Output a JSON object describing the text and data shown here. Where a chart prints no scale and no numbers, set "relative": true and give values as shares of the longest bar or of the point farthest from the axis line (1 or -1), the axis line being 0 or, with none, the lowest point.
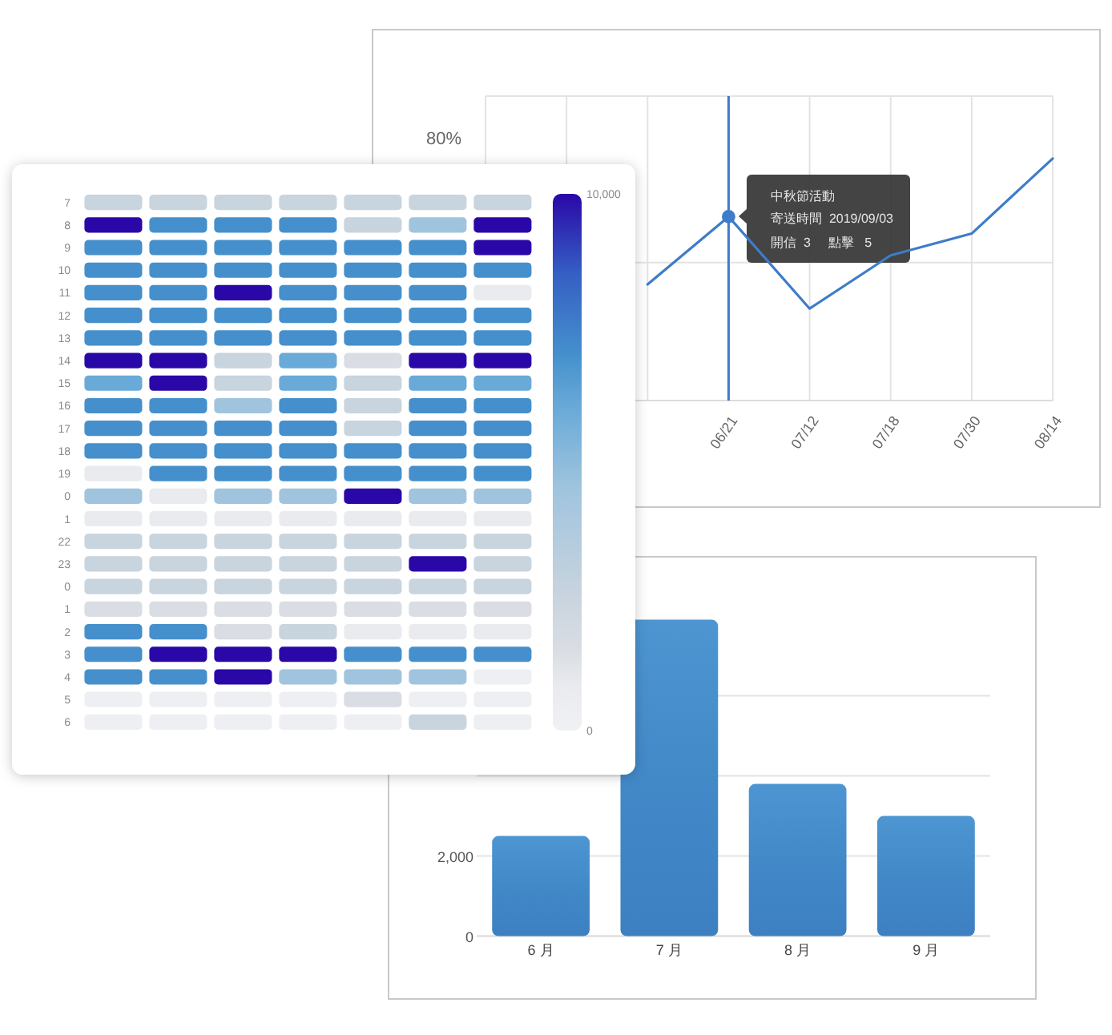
{
  "chart_data": [
    {
      "type": "line",
      "categories": [
        null,
        null,
        null,
        "06/21",
        "07/12",
        "07/18",
        "07/30",
        "08/14"
      ],
      "relative": true,
      "grid": true,
      "series": [
        {
          "color": "#3d7cc9",
          "values": [
            null,
            null,
            0.48,
            0.76,
            0.38,
            0.6,
            0.69,
            1
          ]
        },
        {
          "type": "scatter",
          "color": "#3d7cc9",
          "values": [
            null,
            null,
            null,
            0.76,
            null,
            null,
            null,
            null
          ]
        }
      ],
      "ref_lines": [
        {
          "axis": "x",
          "value": "06/21",
          "color": "#3d7cc9"
        }
      ],
      "annotations": [
        "80%",
        "中秋節活動",
        "寄送時間  2019/09/03",
        "開信  3     點擊   5"
      ]
    },
    {
      "type": "heatmap",
      "categories": [
        null,
        null,
        null,
        null,
        null,
        null,
        null
      ],
      "y_categories": [
        "7",
        "8",
        "9",
        "10",
        "11",
        "12",
        "13",
        "14",
        "15",
        "16",
        "17",
        "18",
        "19",
        "0",
        "1",
        "22",
        "23",
        "0",
        "1",
        "2",
        "3",
        "4",
        "5",
        "6"
      ],
      "cells": [
        [
          2500,
          2500,
          2500,
          2500,
          2500,
          2500,
          2500
        ],
        [
          10000,
          7000,
          7000,
          7000,
          2500,
          4500,
          10000
        ],
        [
          7000,
          7000,
          7000,
          7000,
          7000,
          7000,
          10000
        ],
        [
          7000,
          7000,
          7000,
          7000,
          7000,
          7000,
          7000
        ],
        [
          7000,
          7000,
          10000,
          7000,
          7000,
          7000,
          800
        ],
        [
          7000,
          7000,
          7000,
          7000,
          7000,
          7000,
          7000
        ],
        [
          7000,
          7000,
          7000,
          7000,
          7000,
          7000,
          7000
        ],
        [
          10000,
          10000,
          2500,
          6000,
          1500,
          10000,
          10000
        ],
        [
          6000,
          10000,
          2500,
          6000,
          2500,
          6000,
          6000
        ],
        [
          7000,
          7000,
          4500,
          7000,
          2500,
          7000,
          7000
        ],
        [
          7000,
          7000,
          7000,
          7000,
          2500,
          7000,
          7000
        ],
        [
          7000,
          7000,
          7000,
          7000,
          7000,
          7000,
          7000
        ],
        [
          800,
          7000,
          7000,
          7000,
          7000,
          7000,
          7000
        ],
        [
          4500,
          800,
          4500,
          4500,
          10000,
          4500,
          4500
        ],
        [
          800,
          800,
          800,
          800,
          800,
          800,
          800
        ],
        [
          2500,
          2500,
          2500,
          2500,
          2500,
          2500,
          2500
        ],
        [
          2500,
          2500,
          2500,
          2500,
          2500,
          10000,
          2500
        ],
        [
          2500,
          2500,
          2500,
          2500,
          2500,
          2500,
          2500
        ],
        [
          1500,
          1500,
          1500,
          1500,
          1500,
          1500,
          1500
        ],
        [
          7000,
          7000,
          1500,
          2500,
          800,
          800,
          800
        ],
        [
          7000,
          10000,
          10000,
          10000,
          7000,
          7000,
          7000
        ],
        [
          7000,
          7000,
          10000,
          4500,
          4500,
          4500,
          300
        ],
        [
          300,
          300,
          300,
          300,
          1500,
          300,
          300
        ],
        [
          300,
          300,
          300,
          300,
          300,
          2500,
          300
        ]
      ],
      "clim": [
        0,
        10000
      ],
      "cticks": [
        0,
        {
          "value": 10000,
          "label": "10,000"
        }
      ]
    },
    {
      "type": "bar",
      "categories": [
        "6 月",
        "7 月",
        "8 月",
        "9 月"
      ],
      "values": [
        2500,
        7900,
        3800,
        3000
      ],
      "color": "#4289c8",
      "ylim": [
        0,
        8000
      ],
      "yticks": [
        0,
        {
          "value": 2000,
          "label": "2,000"
        },
        {
          "value": 4000,
          "label": null
        },
        {
          "value": 6000,
          "label": null
        }
      ],
      "grid": "y"
    }
  ]
}
